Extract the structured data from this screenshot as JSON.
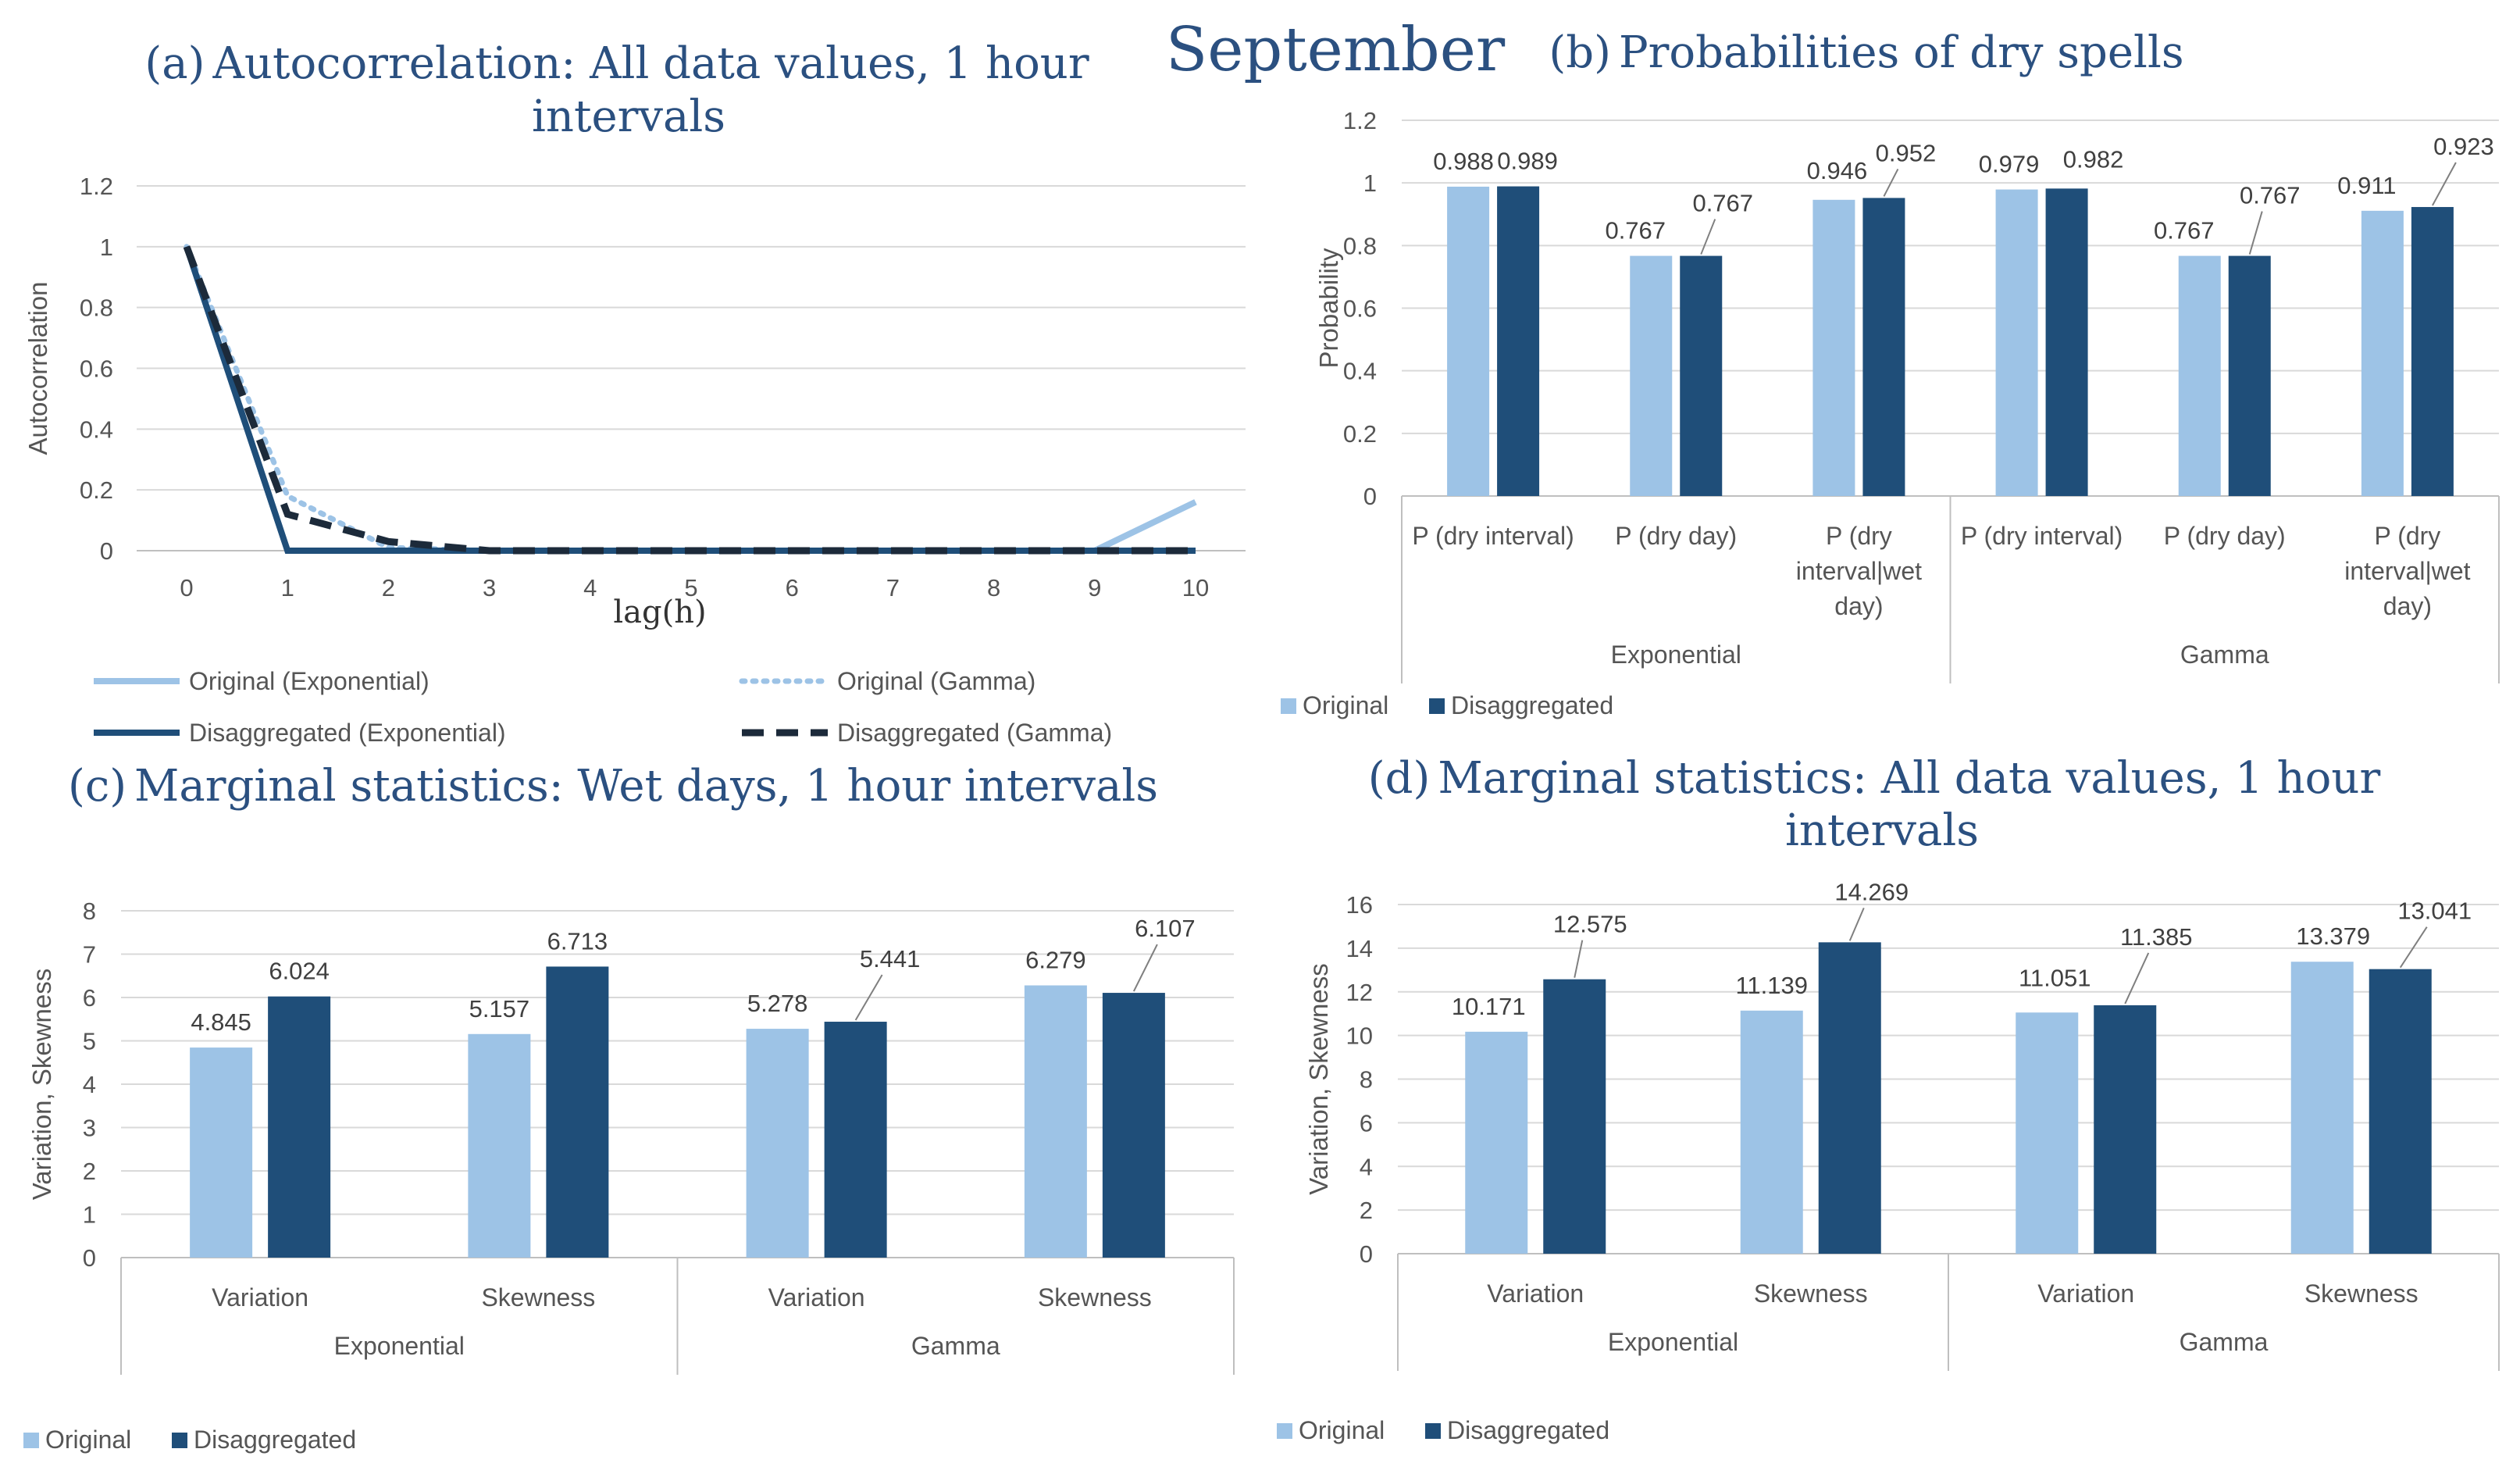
{
  "main_title": "September",
  "colors": {
    "original": "#9dc3e6",
    "disaggregated": "#1f4e79",
    "title": "#2b5080"
  },
  "chart_data": [
    {
      "id": "a",
      "type": "line",
      "title_letter": "(a)",
      "title": "Autocorrelation: All data values, 1 hour",
      "title_line2": "intervals",
      "xlabel": "lag(h)",
      "ylabel": "Autocorrelation",
      "x": [
        0,
        1,
        2,
        3,
        4,
        5,
        6,
        7,
        8,
        9,
        10
      ],
      "x_tick_labels": [
        "0",
        "1",
        "2",
        "3",
        "4",
        "5",
        "6",
        "7",
        "8",
        "9",
        "10"
      ],
      "ylim": [
        0,
        1.2
      ],
      "y_tick_labels": [
        "0",
        "0.2",
        "0.4",
        "0.6",
        "0.8",
        "1",
        "1.2"
      ],
      "grid": true,
      "legend_position": "bottom",
      "series": [
        {
          "name": "Original (Exponential)",
          "style": "solid-light",
          "values": [
            1,
            0,
            0,
            0,
            0,
            0,
            0,
            0,
            0,
            0,
            0.16
          ]
        },
        {
          "name": "Original (Gamma)",
          "style": "dotted-light",
          "values": [
            1,
            0.18,
            0.01,
            0,
            0,
            0,
            0,
            0,
            0,
            0,
            0
          ]
        },
        {
          "name": "Disaggregated (Exponential)",
          "style": "solid-dark",
          "values": [
            1,
            0,
            0,
            0,
            0,
            0,
            0,
            0,
            0,
            0,
            0
          ]
        },
        {
          "name": "Disaggregated (Gamma)",
          "style": "dashed-dark",
          "values": [
            1,
            0.12,
            0.03,
            0,
            0,
            0,
            0,
            0,
            0,
            0,
            0
          ]
        }
      ]
    },
    {
      "id": "b",
      "type": "bar",
      "title_letter": "(b)",
      "title": "Probabilities of dry spells",
      "title_line2": "",
      "ylabel": "Probability",
      "ylim": [
        0,
        1.2
      ],
      "y_tick_labels": [
        "0",
        "0.2",
        "0.4",
        "0.6",
        "0.8",
        "1",
        "1.2"
      ],
      "grid": true,
      "legend_position": "bottom-left",
      "groups": [
        "Exponential",
        "Gamma"
      ],
      "categories": [
        [
          "P (dry interval)"
        ],
        [
          "P (dry day)"
        ],
        [
          "P (dry",
          "interval|wet",
          "day)"
        ],
        [
          "P (dry interval)"
        ],
        [
          "P (dry day)"
        ],
        [
          "P (dry",
          "interval|wet",
          "day)"
        ]
      ],
      "series": [
        {
          "name": "Original",
          "values": [
            0.988,
            0.767,
            0.946,
            0.979,
            0.767,
            0.911
          ],
          "labels": [
            "0.988",
            "0.767",
            "0.946",
            "0.979",
            "0.767",
            "0.911"
          ]
        },
        {
          "name": "Disaggregated",
          "values": [
            0.989,
            0.767,
            0.952,
            0.982,
            0.767,
            0.923
          ],
          "labels": [
            "0.989",
            "0.767",
            "0.952",
            "0.982",
            "0.767",
            "0.923"
          ]
        }
      ]
    },
    {
      "id": "c",
      "type": "bar",
      "title_letter": "(c)",
      "title": "Marginal statistics: Wet days, 1 hour intervals",
      "title_line2": "",
      "ylabel": "Variation, Skewness",
      "ylim": [
        0,
        8
      ],
      "y_tick_labels": [
        "0",
        "1",
        "2",
        "3",
        "4",
        "5",
        "6",
        "7",
        "8"
      ],
      "grid": true,
      "legend_position": "bottom-left",
      "groups": [
        "Exponential",
        "Gamma"
      ],
      "categories": [
        [
          "Variation"
        ],
        [
          "Skewness"
        ],
        [
          "Variation"
        ],
        [
          "Skewness"
        ]
      ],
      "series": [
        {
          "name": "Original",
          "values": [
            4.845,
            5.157,
            5.278,
            6.279
          ],
          "labels": [
            "4.845",
            "5.157",
            "5.278",
            "6.279"
          ]
        },
        {
          "name": "Disaggregated",
          "values": [
            6.024,
            6.713,
            5.441,
            6.107
          ],
          "labels": [
            "6.024",
            "6.713",
            "5.441",
            "6.107"
          ]
        }
      ]
    },
    {
      "id": "d",
      "type": "bar",
      "title_letter": "(d)",
      "title": "Marginal statistics: All data values, 1 hour",
      "title_line2": "intervals",
      "ylabel": "Variation, Skewness",
      "ylim": [
        0,
        16
      ],
      "y_tick_labels": [
        "0",
        "2",
        "4",
        "6",
        "8",
        "10",
        "12",
        "14",
        "16"
      ],
      "grid": true,
      "legend_position": "bottom-left",
      "groups": [
        "Exponential",
        "Gamma"
      ],
      "categories": [
        [
          "Variation"
        ],
        [
          "Skewness"
        ],
        [
          "Variation"
        ],
        [
          "Skewness"
        ]
      ],
      "series": [
        {
          "name": "Original",
          "values": [
            10.171,
            11.139,
            11.051,
            13.379
          ],
          "labels": [
            "10.171",
            "11.139",
            "11.051",
            "13.379"
          ]
        },
        {
          "name": "Disaggregated",
          "values": [
            12.575,
            14.269,
            11.385,
            13.041
          ],
          "labels": [
            "12.575",
            "14.269",
            "11.385",
            "13.041"
          ]
        }
      ]
    }
  ]
}
